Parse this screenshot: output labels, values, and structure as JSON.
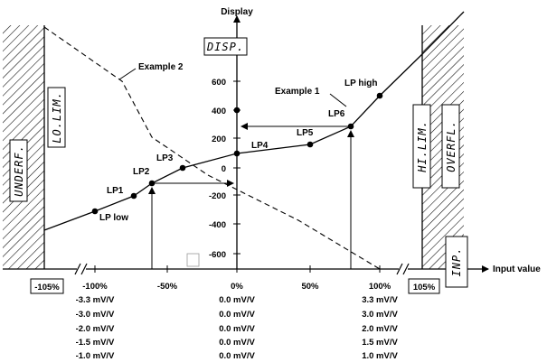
{
  "axes": {
    "y_title": "Display",
    "x_title": "Input value"
  },
  "display_box": "DISP.",
  "input_box": "INP.",
  "segment_labels": {
    "underflow": "UNDERF.",
    "lo_limit": "LO.LIM.",
    "hi_limit": "HI.LIM.",
    "overflow": "OVERFL."
  },
  "y_ticks": [
    "600",
    "400",
    "200",
    "0",
    "-200",
    "-400",
    "-600"
  ],
  "x_ticks": [
    "-100%",
    "-50%",
    "0%",
    "50%",
    "100%"
  ],
  "boundary_labels": {
    "low": "-105%",
    "high": "105%"
  },
  "points": {
    "lp_low": "LP low",
    "lp1": "LP1",
    "lp2": "LP2",
    "lp3": "LP3",
    "lp4": "LP4",
    "lp5": "LP5",
    "lp6": "LP6",
    "lp_high": "LP high"
  },
  "examples": {
    "example1": "Example 1",
    "example2": "Example 2"
  },
  "mv_table": {
    "columns": [
      [
        "-3.3 mV/V",
        "-3.0 mV/V",
        "-2.0 mV/V",
        "-1.5 mV/V",
        "-1.0 mV/V"
      ],
      [
        "0.0 mV/V",
        "0.0 mV/V",
        "0.0 mV/V",
        "0.0 mV/V",
        "0.0 mV/V"
      ],
      [
        "3.3 mV/V",
        "3.0 mV/V",
        "2.0 mV/V",
        "1.5 mV/V",
        "1.0 mV/V"
      ]
    ]
  },
  "colors": {
    "ink": "#000000",
    "background": "#ffffff"
  }
}
